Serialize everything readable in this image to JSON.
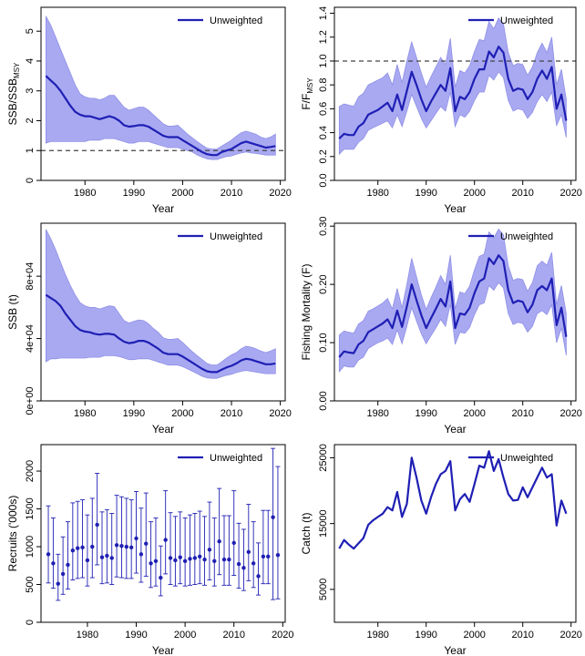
{
  "colors": {
    "line": "#1f1fb4",
    "ribbon": "#a9a9f2",
    "ribbon_edge": "#8f8fe6",
    "reference": "#444444",
    "axis": "#000000"
  },
  "chart_data": [
    {
      "id": "ssb-ratio",
      "type": "line",
      "ylabel_main": "SSB/SSB",
      "ylabel_sub": "MSY",
      "xlabel": "Year",
      "legend": "Unweighted",
      "legend_position": "top-right",
      "xlim": [
        1971,
        2021
      ],
      "ylim": [
        0,
        5.8
      ],
      "xticks": [
        1980,
        1990,
        2000,
        2010,
        2020
      ],
      "yticks": [
        0,
        1,
        2,
        3,
        4,
        5
      ],
      "ytick_labels": [
        "0",
        "1",
        "2",
        "3",
        "4",
        "5"
      ],
      "reference_line": 1,
      "x": [
        1972,
        1973,
        1974,
        1975,
        1976,
        1977,
        1978,
        1979,
        1980,
        1981,
        1982,
        1983,
        1984,
        1985,
        1986,
        1987,
        1988,
        1989,
        1990,
        1991,
        1992,
        1993,
        1994,
        1995,
        1996,
        1997,
        1998,
        1999,
        2000,
        2001,
        2002,
        2003,
        2004,
        2005,
        2006,
        2007,
        2008,
        2009,
        2010,
        2011,
        2012,
        2013,
        2014,
        2015,
        2016,
        2017,
        2018,
        2019
      ],
      "y": [
        3.5,
        3.35,
        3.2,
        3.0,
        2.75,
        2.5,
        2.3,
        2.2,
        2.15,
        2.15,
        2.1,
        2.05,
        2.1,
        2.15,
        2.1,
        2.0,
        1.85,
        1.8,
        1.82,
        1.85,
        1.85,
        1.8,
        1.7,
        1.6,
        1.5,
        1.45,
        1.45,
        1.45,
        1.35,
        1.25,
        1.15,
        1.05,
        0.95,
        0.88,
        0.85,
        0.85,
        0.95,
        1.0,
        1.05,
        1.15,
        1.25,
        1.3,
        1.25,
        1.2,
        1.15,
        1.1,
        1.12,
        1.15
      ],
      "lower": [
        1.25,
        1.3,
        1.3,
        1.3,
        1.3,
        1.3,
        1.3,
        1.3,
        1.3,
        1.35,
        1.35,
        1.35,
        1.4,
        1.4,
        1.4,
        1.35,
        1.3,
        1.25,
        1.25,
        1.3,
        1.3,
        1.3,
        1.25,
        1.2,
        1.15,
        1.1,
        1.1,
        1.1,
        1.05,
        1.0,
        0.95,
        0.85,
        0.78,
        0.72,
        0.7,
        0.7,
        0.75,
        0.8,
        0.82,
        0.88,
        0.92,
        0.95,
        0.92,
        0.9,
        0.88,
        0.85,
        0.85,
        0.85
      ],
      "upper": [
        5.5,
        5.2,
        4.8,
        4.4,
        4.0,
        3.6,
        3.2,
        2.9,
        2.8,
        2.75,
        2.75,
        2.7,
        2.75,
        2.85,
        2.85,
        2.65,
        2.45,
        2.35,
        2.4,
        2.45,
        2.45,
        2.35,
        2.2,
        2.05,
        1.9,
        1.82,
        1.82,
        1.85,
        1.7,
        1.55,
        1.42,
        1.3,
        1.18,
        1.08,
        1.05,
        1.05,
        1.15,
        1.25,
        1.35,
        1.48,
        1.6,
        1.65,
        1.6,
        1.55,
        1.45,
        1.4,
        1.45,
        1.55
      ]
    },
    {
      "id": "f-ratio",
      "type": "line",
      "ylabel_main": "F/F",
      "ylabel_sub": "MSY",
      "xlabel": "Year",
      "legend": "Unweighted",
      "legend_position": "top-right",
      "xlim": [
        1971,
        2021
      ],
      "ylim": [
        0,
        1.45
      ],
      "xticks": [
        1980,
        1990,
        2000,
        2010,
        2020
      ],
      "yticks": [
        0,
        0.2,
        0.4,
        0.6,
        0.8,
        1.0,
        1.2,
        1.4
      ],
      "ytick_labels": [
        "0.0",
        "0.2",
        "0.4",
        "0.6",
        "0.8",
        "1.0",
        "1.2",
        "1.4"
      ],
      "reference_line": 1,
      "x": [
        1972,
        1973,
        1974,
        1975,
        1976,
        1977,
        1978,
        1979,
        1980,
        1981,
        1982,
        1983,
        1984,
        1985,
        1986,
        1987,
        1988,
        1989,
        1990,
        1991,
        1992,
        1993,
        1994,
        1995,
        1996,
        1997,
        1998,
        1999,
        2000,
        2001,
        2002,
        2003,
        2004,
        2005,
        2006,
        2007,
        2008,
        2009,
        2010,
        2011,
        2012,
        2013,
        2014,
        2015,
        2016,
        2017,
        2018,
        2019
      ],
      "y": [
        0.35,
        0.39,
        0.38,
        0.38,
        0.45,
        0.48,
        0.55,
        0.57,
        0.59,
        0.62,
        0.65,
        0.58,
        0.72,
        0.59,
        0.75,
        0.91,
        0.8,
        0.68,
        0.58,
        0.66,
        0.73,
        0.8,
        0.75,
        0.94,
        0.58,
        0.7,
        0.68,
        0.74,
        0.85,
        0.93,
        0.93,
        1.08,
        1.03,
        1.12,
        1.07,
        0.85,
        0.75,
        0.77,
        0.76,
        0.68,
        0.74,
        0.85,
        0.92,
        0.85,
        0.95,
        0.6,
        0.72,
        0.5
      ],
      "lower": [
        0.22,
        0.26,
        0.26,
        0.26,
        0.32,
        0.35,
        0.42,
        0.44,
        0.46,
        0.48,
        0.5,
        0.44,
        0.55,
        0.45,
        0.58,
        0.72,
        0.62,
        0.52,
        0.44,
        0.5,
        0.56,
        0.62,
        0.58,
        0.74,
        0.45,
        0.55,
        0.53,
        0.58,
        0.67,
        0.74,
        0.74,
        0.88,
        0.84,
        0.91,
        0.86,
        0.67,
        0.58,
        0.6,
        0.59,
        0.52,
        0.57,
        0.66,
        0.72,
        0.66,
        0.74,
        0.46,
        0.55,
        0.36
      ],
      "upper": [
        0.62,
        0.64,
        0.63,
        0.62,
        0.7,
        0.73,
        0.8,
        0.82,
        0.84,
        0.86,
        0.9,
        0.8,
        0.97,
        0.82,
        1.0,
        1.16,
        1.03,
        0.9,
        0.78,
        0.87,
        0.95,
        1.03,
        0.97,
        1.19,
        0.78,
        0.92,
        0.9,
        0.96,
        1.08,
        1.18,
        1.17,
        1.33,
        1.27,
        1.36,
        1.31,
        1.07,
        0.96,
        0.98,
        0.97,
        0.88,
        0.95,
        1.07,
        1.15,
        1.07,
        1.2,
        0.8,
        0.93,
        0.68
      ]
    },
    {
      "id": "ssb",
      "type": "line",
      "ylabel_main": "SSB (t)",
      "ylabel_sub": "",
      "xlabel": "Year",
      "legend": "Unweighted",
      "legend_position": "top-right",
      "xlim": [
        1971,
        2021
      ],
      "ylim": [
        0,
        114000
      ],
      "xticks": [
        1980,
        1990,
        2000,
        2010,
        2020
      ],
      "yticks": [
        0,
        40000,
        80000
      ],
      "ytick_labels": [
        "0e+00",
        "4e+04",
        "8e+04"
      ],
      "reference_line": null,
      "x": [
        1972,
        1973,
        1974,
        1975,
        1976,
        1977,
        1978,
        1979,
        1980,
        1981,
        1982,
        1983,
        1984,
        1985,
        1986,
        1987,
        1988,
        1989,
        1990,
        1991,
        1992,
        1993,
        1994,
        1995,
        1996,
        1997,
        1998,
        1999,
        2000,
        2001,
        2002,
        2003,
        2004,
        2005,
        2006,
        2007,
        2008,
        2009,
        2010,
        2011,
        2012,
        2013,
        2014,
        2015,
        2016,
        2017,
        2018,
        2019
      ],
      "y": [
        68000,
        66000,
        64000,
        61000,
        56000,
        52000,
        48000,
        45500,
        44500,
        44000,
        43000,
        42500,
        43000,
        43000,
        42500,
        40000,
        38000,
        37000,
        37500,
        38500,
        38500,
        37500,
        35500,
        33500,
        31000,
        30000,
        30000,
        30000,
        28500,
        26500,
        24500,
        22500,
        20500,
        19000,
        18500,
        18500,
        20000,
        21500,
        22500,
        24000,
        26000,
        27000,
        26500,
        25500,
        24500,
        23500,
        23500,
        24000
      ],
      "lower": [
        25000,
        27000,
        27000,
        27500,
        27500,
        27500,
        27500,
        27500,
        27500,
        28000,
        28000,
        28000,
        29000,
        29000,
        29000,
        28500,
        27500,
        26500,
        26500,
        27000,
        27000,
        27000,
        26000,
        25000,
        24000,
        23000,
        23000,
        23000,
        22000,
        20500,
        19000,
        17500,
        15800,
        14800,
        14500,
        14500,
        15500,
        16500,
        17000,
        18200,
        19000,
        19500,
        19000,
        18500,
        18000,
        17500,
        17500,
        17500
      ],
      "upper": [
        110000,
        104000,
        97000,
        89000,
        81000,
        74000,
        68000,
        63000,
        61000,
        60000,
        60000,
        59000,
        60000,
        61000,
        60500,
        56000,
        51500,
        50000,
        51000,
        52000,
        51500,
        49500,
        46500,
        44000,
        40500,
        39500,
        39500,
        40000,
        37500,
        34500,
        31500,
        29000,
        26500,
        24000,
        23000,
        23000,
        25000,
        27500,
        29500,
        31000,
        33500,
        35000,
        34500,
        33500,
        32000,
        31000,
        32000,
        33500
      ]
    },
    {
      "id": "fishing-mortality",
      "type": "line",
      "ylabel_main": "Fishing Mortality (F)",
      "ylabel_sub": "",
      "xlabel": "Year",
      "legend": "Unweighted",
      "legend_position": "top-right",
      "xlim": [
        1971,
        2021
      ],
      "ylim": [
        0,
        0.305
      ],
      "xticks": [
        1980,
        1990,
        2000,
        2010,
        2020
      ],
      "yticks": [
        0,
        0.1,
        0.2,
        0.3
      ],
      "ytick_labels": [
        "0.00",
        "0.10",
        "0.20",
        "0.30"
      ],
      "reference_line": null,
      "x": [
        1972,
        1973,
        1974,
        1975,
        1976,
        1977,
        1978,
        1979,
        1980,
        1981,
        1982,
        1983,
        1984,
        1985,
        1986,
        1987,
        1988,
        1989,
        1990,
        1991,
        1992,
        1993,
        1994,
        1995,
        1996,
        1997,
        1998,
        1999,
        2000,
        2001,
        2002,
        2003,
        2004,
        2005,
        2006,
        2007,
        2008,
        2009,
        2010,
        2011,
        2012,
        2013,
        2014,
        2015,
        2016,
        2017,
        2018,
        2019
      ],
      "y": [
        0.075,
        0.085,
        0.083,
        0.082,
        0.097,
        0.103,
        0.118,
        0.123,
        0.128,
        0.133,
        0.14,
        0.125,
        0.155,
        0.127,
        0.162,
        0.2,
        0.173,
        0.147,
        0.125,
        0.142,
        0.158,
        0.175,
        0.162,
        0.205,
        0.125,
        0.15,
        0.148,
        0.16,
        0.185,
        0.205,
        0.21,
        0.245,
        0.235,
        0.25,
        0.24,
        0.19,
        0.168,
        0.172,
        0.17,
        0.152,
        0.165,
        0.19,
        0.197,
        0.19,
        0.21,
        0.13,
        0.16,
        0.11
      ],
      "lower": [
        0.05,
        0.06,
        0.058,
        0.058,
        0.07,
        0.075,
        0.09,
        0.095,
        0.1,
        0.103,
        0.108,
        0.097,
        0.122,
        0.098,
        0.128,
        0.16,
        0.137,
        0.115,
        0.098,
        0.112,
        0.125,
        0.14,
        0.128,
        0.166,
        0.097,
        0.118,
        0.116,
        0.126,
        0.148,
        0.165,
        0.168,
        0.198,
        0.19,
        0.203,
        0.194,
        0.15,
        0.131,
        0.135,
        0.133,
        0.118,
        0.128,
        0.15,
        0.155,
        0.148,
        0.165,
        0.1,
        0.125,
        0.078
      ],
      "upper": [
        0.113,
        0.12,
        0.118,
        0.116,
        0.132,
        0.138,
        0.154,
        0.158,
        0.163,
        0.168,
        0.176,
        0.158,
        0.193,
        0.16,
        0.2,
        0.245,
        0.213,
        0.182,
        0.157,
        0.177,
        0.195,
        0.215,
        0.2,
        0.25,
        0.158,
        0.187,
        0.184,
        0.197,
        0.225,
        0.248,
        0.252,
        0.29,
        0.28,
        0.295,
        0.285,
        0.232,
        0.207,
        0.21,
        0.208,
        0.188,
        0.203,
        0.232,
        0.24,
        0.233,
        0.255,
        0.165,
        0.198,
        0.15
      ]
    },
    {
      "id": "recruits",
      "type": "scatter",
      "ylabel_main": "Recruits ('000s)",
      "ylabel_sub": "",
      "xlabel": "Year",
      "legend": "Unweighted",
      "legend_position": "top-right",
      "xlim": [
        1970.5,
        2020.5
      ],
      "ylim": [
        0,
        2350
      ],
      "xticks": [
        1980,
        1990,
        2000,
        2010,
        2020
      ],
      "yticks": [
        0,
        500,
        1000,
        1500,
        2000
      ],
      "ytick_labels": [
        "0",
        "500",
        "1000",
        "1500",
        "2000"
      ],
      "reference_line": null,
      "x": [
        1972,
        1973,
        1974,
        1975,
        1976,
        1977,
        1978,
        1979,
        1980,
        1981,
        1982,
        1983,
        1984,
        1985,
        1986,
        1987,
        1988,
        1989,
        1990,
        1991,
        1992,
        1993,
        1994,
        1995,
        1996,
        1997,
        1998,
        1999,
        2000,
        2001,
        2002,
        2003,
        2004,
        2005,
        2006,
        2007,
        2008,
        2009,
        2010,
        2011,
        2012,
        2013,
        2014,
        2015,
        2016,
        2017,
        2018,
        2019
      ],
      "y": [
        900,
        780,
        510,
        640,
        760,
        950,
        980,
        990,
        820,
        1000,
        1290,
        860,
        880,
        850,
        1020,
        1010,
        1000,
        990,
        1110,
        900,
        1040,
        780,
        810,
        590,
        1090,
        850,
        820,
        860,
        810,
        840,
        850,
        870,
        830,
        960,
        810,
        1070,
        830,
        830,
        1050,
        770,
        720,
        930,
        780,
        610,
        870,
        870,
        1390,
        890
      ],
      "lower": [
        520,
        450,
        290,
        370,
        440,
        560,
        580,
        590,
        480,
        590,
        760,
        510,
        520,
        500,
        600,
        590,
        580,
        580,
        650,
        530,
        610,
        460,
        480,
        350,
        640,
        500,
        480,
        510,
        480,
        490,
        500,
        510,
        490,
        560,
        480,
        630,
        490,
        490,
        620,
        450,
        420,
        550,
        460,
        360,
        510,
        510,
        300,
        310
      ],
      "upper": [
        1540,
        1380,
        900,
        1130,
        1330,
        1580,
        1600,
        1620,
        1420,
        1640,
        1970,
        1460,
        1490,
        1440,
        1680,
        1660,
        1640,
        1620,
        1730,
        1510,
        1710,
        1330,
        1380,
        1010,
        1740,
        1450,
        1400,
        1460,
        1380,
        1420,
        1440,
        1470,
        1400,
        1590,
        1380,
        1770,
        1410,
        1410,
        1740,
        1310,
        1230,
        1560,
        1330,
        1050,
        1480,
        1480,
        2300,
        2060
      ]
    },
    {
      "id": "catch",
      "type": "line",
      "ylabel_main": "Catch (t)",
      "ylabel_sub": "",
      "xlabel": "Year",
      "legend": "Unweighted",
      "legend_position": "top-right",
      "xlim": [
        1971,
        2021
      ],
      "ylim": [
        0,
        27000
      ],
      "xticks": [
        1980,
        1990,
        2000,
        2010,
        2020
      ],
      "yticks": [
        5000,
        15000,
        25000
      ],
      "ytick_labels": [
        "5000",
        "15000",
        "25000"
      ],
      "reference_line": null,
      "x": [
        1972,
        1973,
        1974,
        1975,
        1976,
        1977,
        1978,
        1979,
        1980,
        1981,
        1982,
        1983,
        1984,
        1985,
        1986,
        1987,
        1988,
        1989,
        1990,
        1991,
        1992,
        1993,
        1994,
        1995,
        1996,
        1997,
        1998,
        1999,
        2000,
        2001,
        2002,
        2003,
        2004,
        2005,
        2006,
        2007,
        2008,
        2009,
        2010,
        2011,
        2012,
        2013,
        2014,
        2015,
        2016,
        2017,
        2018,
        2019
      ],
      "y": [
        11200,
        12500,
        11800,
        11200,
        12000,
        12800,
        14800,
        15500,
        16000,
        16500,
        17500,
        17000,
        19800,
        16000,
        18000,
        25000,
        22000,
        18500,
        16500,
        19000,
        21000,
        22500,
        23000,
        24500,
        17000,
        18700,
        19500,
        18300,
        21000,
        23800,
        23500,
        26000,
        23000,
        24800,
        22000,
        19500,
        18500,
        18600,
        20500,
        19000,
        20500,
        22000,
        23500,
        22000,
        22500,
        14700,
        18500,
        16500
      ],
      "lower": [],
      "upper": []
    }
  ]
}
